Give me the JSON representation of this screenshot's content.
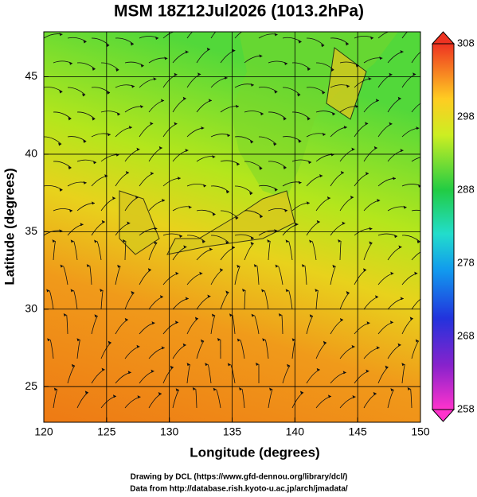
{
  "chart_data": {
    "type": "map",
    "title": "MSM 18Z12Jul2026 (1013.2hPa)",
    "xlabel": "Longitude (degrees)",
    "ylabel": "Latitude  (degrees)",
    "xlim": [
      120,
      150
    ],
    "ylim": [
      22.7,
      47.9
    ],
    "xticks": [
      120,
      125,
      130,
      135,
      140,
      145,
      150
    ],
    "yticks": [
      25,
      30,
      35,
      40,
      45
    ],
    "grid": true,
    "colorbar": {
      "lim": [
        258,
        308
      ],
      "ticks": [
        258,
        268,
        278,
        288,
        298,
        308
      ]
    },
    "credits": [
      "Drawing by DCL (https://www.gfd-dennou.org/library/dcl/)",
      "Data from http://database.rish.kyoto-u.ac.jp/arch/jmadata/"
    ]
  }
}
